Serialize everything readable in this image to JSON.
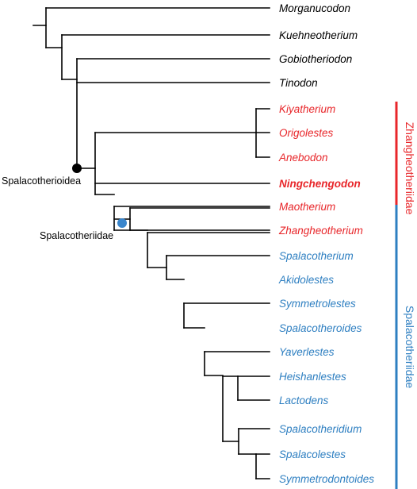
{
  "colors": {
    "branch": "#000000",
    "default_taxon": "#000000",
    "zhangheotheriidae": "#e8262a",
    "spalacotheriidae": "#2e7fc1",
    "node_spalacotherioidea": "#000000",
    "node_spalacotheriidae": "#3a86cc"
  },
  "taxa": [
    {
      "name": "Morganucodon",
      "group": "outgroup",
      "bold": false
    },
    {
      "name": "Kuehneotherium",
      "group": "outgroup",
      "bold": false
    },
    {
      "name": "Gobiotheriodon",
      "group": "outgroup",
      "bold": false
    },
    {
      "name": "Tinodon",
      "group": "outgroup",
      "bold": false
    },
    {
      "name": "Kiyatherium",
      "group": "zhangheotheriidae",
      "bold": false
    },
    {
      "name": "Origolestes",
      "group": "zhangheotheriidae",
      "bold": false
    },
    {
      "name": "Anebodon",
      "group": "zhangheotheriidae",
      "bold": false
    },
    {
      "name": "Ningchengodon",
      "group": "zhangheotheriidae",
      "bold": true
    },
    {
      "name": "Maotherium",
      "group": "zhangheotheriidae",
      "bold": false
    },
    {
      "name": "Zhangheotherium",
      "group": "zhangheotheriidae",
      "bold": false
    },
    {
      "name": "Spalacotherium",
      "group": "spalacotheriidae",
      "bold": false
    },
    {
      "name": "Akidolestes",
      "group": "spalacotheriidae",
      "bold": false
    },
    {
      "name": "Symmetrolestes",
      "group": "spalacotheriidae",
      "bold": false
    },
    {
      "name": "Spalacotheroides",
      "group": "spalacotheriidae",
      "bold": false
    },
    {
      "name": "Yaverlestes",
      "group": "spalacotheriidae",
      "bold": false
    },
    {
      "name": "Heishanlestes",
      "group": "spalacotheriidae",
      "bold": false
    },
    {
      "name": "Lactodens",
      "group": "spalacotheriidae",
      "bold": false
    },
    {
      "name": "Spalacotheridium",
      "group": "spalacotheriidae",
      "bold": false
    },
    {
      "name": "Spalacolestes",
      "group": "spalacotheriidae",
      "bold": false
    },
    {
      "name": "Symmetrodontoides",
      "group": "spalacotheriidae",
      "bold": false
    }
  ],
  "node_labels": {
    "spalacotherioidea": "Spalacotherioidea",
    "spalacotheriidae": "Spalacotheriidae"
  },
  "clade_labels": {
    "zhangheotheriidae": "Zhangheotheriidae",
    "spalacotheriidae": "Spalacotheriidae"
  }
}
